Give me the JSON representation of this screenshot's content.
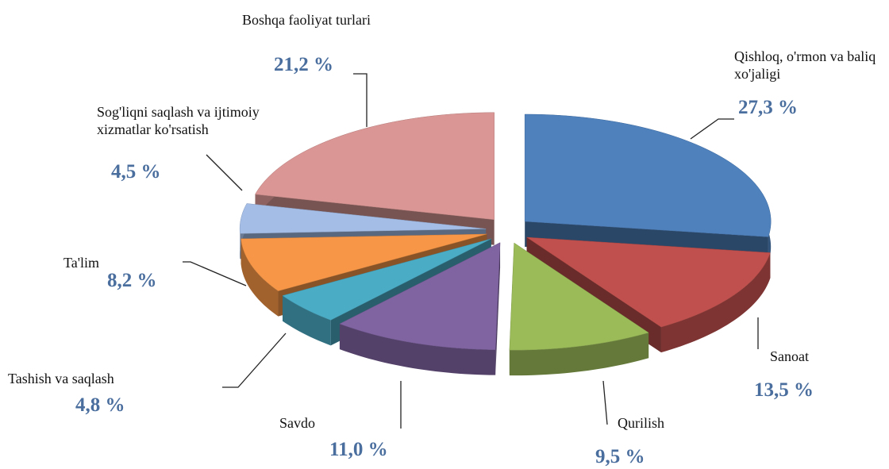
{
  "chart_data": {
    "type": "pie",
    "categories": [
      "Qishloq, o'rmon va baliq xo'jaligi",
      "Sanoat",
      "Qurilish",
      "Savdo",
      "Tashish va saqlash",
      "Ta'lim",
      "Sog'liqni saqlash va ijtimoiy xizmatlar ko'rsatish",
      "Boshqa faoliyat turlari"
    ],
    "values": [
      27.3,
      13.5,
      9.5,
      11.0,
      4.8,
      8.2,
      4.5,
      21.2
    ],
    "value_labels": [
      "27,3 %",
      "13,5 %",
      "9,5 %",
      "11,0 %",
      "4,8 %",
      "8,2 %",
      "4,5 %",
      "21,2 %"
    ],
    "colors": [
      "#4f81bd",
      "#c0504d",
      "#9bbb59",
      "#8064a2",
      "#4bacc6",
      "#f79646",
      "#a4bde6",
      "#d99694"
    ]
  }
}
